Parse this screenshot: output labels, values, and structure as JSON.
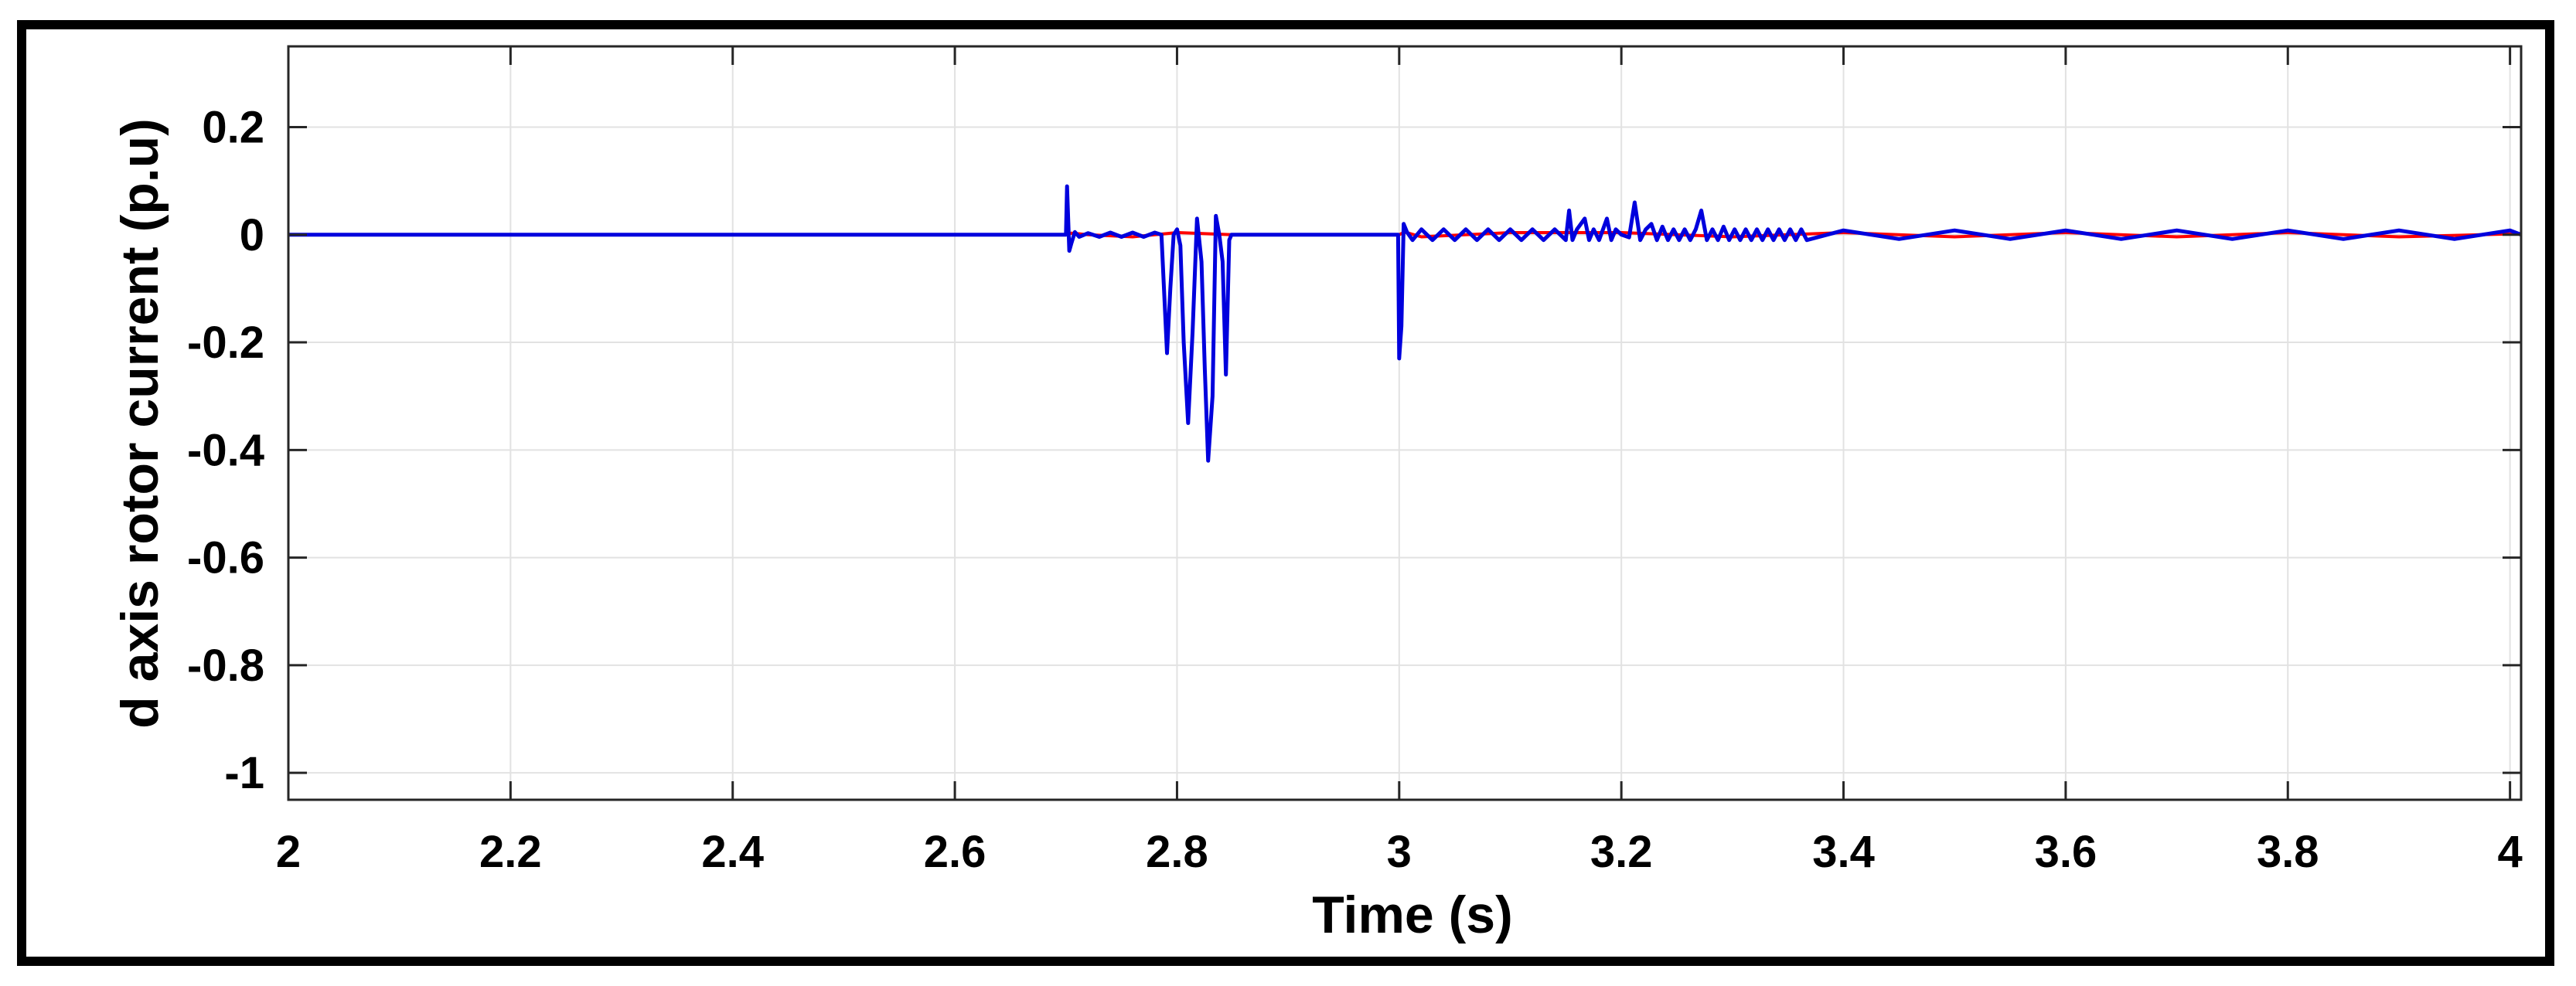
{
  "chart_data": {
    "type": "line",
    "title": "",
    "xlabel": "Time (s)",
    "ylabel": "d axis rotor current (p.u)",
    "xlim": [
      2,
      4.01
    ],
    "ylim": [
      -1.05,
      0.35
    ],
    "xticks": [
      2,
      2.2,
      2.4,
      2.6,
      2.8,
      3,
      3.2,
      3.4,
      3.6,
      3.8,
      4
    ],
    "xtick_labels": [
      "2",
      "2.2",
      "2.4",
      "2.6",
      "2.8",
      "3",
      "3.2",
      "3.4",
      "3.6",
      "3.8",
      "4"
    ],
    "yticks": [
      0.2,
      0,
      -0.2,
      -0.4,
      -0.6,
      -0.8,
      -1
    ],
    "ytick_labels": [
      "0.2",
      "0",
      "-0.2",
      "-0.4",
      "-0.6",
      "-0.8",
      "-1"
    ],
    "grid": true,
    "legend": "none",
    "series": [
      {
        "color": "#ff0000",
        "x": [
          2,
          2.7,
          2.705,
          2.72,
          2.76,
          2.8,
          2.85,
          2.9,
          3,
          3.005,
          3.02,
          3.1,
          3.2,
          3.3,
          3.4,
          3.5,
          3.6,
          3.7,
          3.8,
          3.9,
          4.01
        ],
        "y": [
          0,
          0,
          0.003,
          0,
          -0.004,
          0.004,
          0,
          0,
          0,
          0.005,
          -0.004,
          0.004,
          0.004,
          -0.004,
          0.004,
          -0.004,
          0.004,
          -0.004,
          0.004,
          -0.004,
          0.002
        ]
      },
      {
        "color": "#0000dd",
        "x": [
          2,
          2.7,
          2.701,
          2.703,
          2.705,
          2.708,
          2.712,
          2.72,
          2.73,
          2.74,
          2.75,
          2.76,
          2.77,
          2.78,
          2.786,
          2.791,
          2.794,
          2.797,
          2.8,
          2.803,
          2.806,
          2.81,
          2.814,
          2.818,
          2.822,
          2.825,
          2.828,
          2.832,
          2.835,
          2.838,
          2.841,
          2.844,
          2.847,
          2.849,
          2.851,
          2.853,
          2.86,
          2.9,
          2.95,
          2.999,
          3.0,
          3.002,
          3.004,
          3.007,
          3.012,
          3.02,
          3.03,
          3.04,
          3.05,
          3.06,
          3.07,
          3.08,
          3.09,
          3.1,
          3.11,
          3.12,
          3.13,
          3.14,
          3.15,
          3.153,
          3.156,
          3.16,
          3.167,
          3.171,
          3.175,
          3.18,
          3.187,
          3.191,
          3.195,
          3.2,
          3.207,
          3.212,
          3.217,
          3.222,
          3.227,
          3.232,
          3.237,
          3.242,
          3.247,
          3.252,
          3.257,
          3.262,
          3.267,
          3.272,
          3.277,
          3.282,
          3.287,
          3.292,
          3.297,
          3.302,
          3.307,
          3.312,
          3.317,
          3.322,
          3.327,
          3.332,
          3.337,
          3.342,
          3.347,
          3.352,
          3.357,
          3.362,
          3.367,
          3.4,
          3.45,
          3.5,
          3.55,
          3.6,
          3.65,
          3.7,
          3.75,
          3.8,
          3.85,
          3.9,
          3.95,
          4.0,
          4.01
        ],
        "y": [
          0,
          0,
          0.09,
          -0.03,
          -0.015,
          0.005,
          -0.004,
          0.003,
          -0.004,
          0.004,
          -0.004,
          0.004,
          -0.004,
          0.004,
          0,
          -0.22,
          -0.1,
          0.0,
          0.01,
          -0.02,
          -0.2,
          -0.35,
          -0.18,
          0.03,
          -0.05,
          -0.25,
          -0.42,
          -0.3,
          0.035,
          0.0,
          -0.05,
          -0.26,
          -0.01,
          0.0,
          0,
          0,
          0,
          0,
          0,
          0,
          -0.23,
          -0.17,
          0.02,
          0.005,
          -0.01,
          0.01,
          -0.01,
          0.01,
          -0.01,
          0.01,
          -0.01,
          0.01,
          -0.01,
          0.01,
          -0.01,
          0.01,
          -0.01,
          0.01,
          -0.01,
          0.045,
          -0.01,
          0.01,
          0.03,
          -0.01,
          0.01,
          -0.01,
          0.03,
          -0.01,
          0.01,
          0.0,
          -0.005,
          0.06,
          -0.01,
          0.01,
          0.02,
          -0.01,
          0.015,
          -0.01,
          0.01,
          -0.01,
          0.01,
          -0.01,
          0.01,
          0.045,
          -0.01,
          0.01,
          -0.01,
          0.015,
          -0.01,
          0.01,
          -0.01,
          0.01,
          -0.01,
          0.01,
          -0.01,
          0.01,
          -0.01,
          0.01,
          -0.01,
          0.01,
          -0.01,
          0.01,
          -0.01,
          0.008,
          -0.008,
          0.008,
          -0.008,
          0.008,
          -0.008,
          0.008,
          -0.008,
          0.008,
          -0.008,
          0.008,
          -0.008,
          0.008,
          0.0
        ]
      }
    ]
  }
}
